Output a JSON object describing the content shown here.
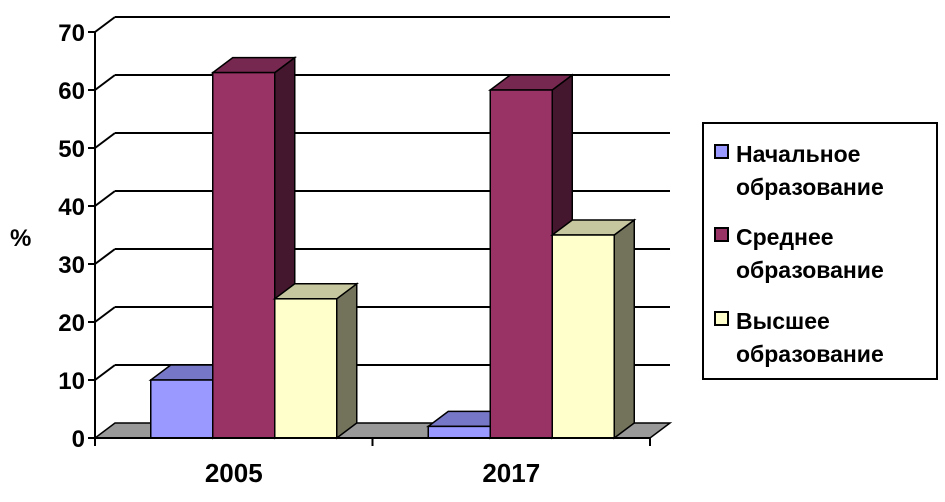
{
  "chart_data": {
    "type": "bar",
    "categories": [
      "2005",
      "2017"
    ],
    "series": [
      {
        "name": "Начальное образование",
        "values": [
          10,
          2
        ],
        "color": "#9999ff"
      },
      {
        "name": "Среднее образование",
        "values": [
          63,
          60
        ],
        "color": "#993366"
      },
      {
        "name": "Высшее образование",
        "values": [
          24,
          35
        ],
        "color": "#ffffcc"
      }
    ],
    "ylabel": "%",
    "xlabel": "",
    "ylim": [
      0,
      70
    ],
    "yticks": [
      "0",
      "10",
      "20",
      "30",
      "40",
      "50",
      "60",
      "70"
    ],
    "grid": true,
    "legend_position": "right",
    "style": "3d-column",
    "floor_color": "#999999"
  }
}
